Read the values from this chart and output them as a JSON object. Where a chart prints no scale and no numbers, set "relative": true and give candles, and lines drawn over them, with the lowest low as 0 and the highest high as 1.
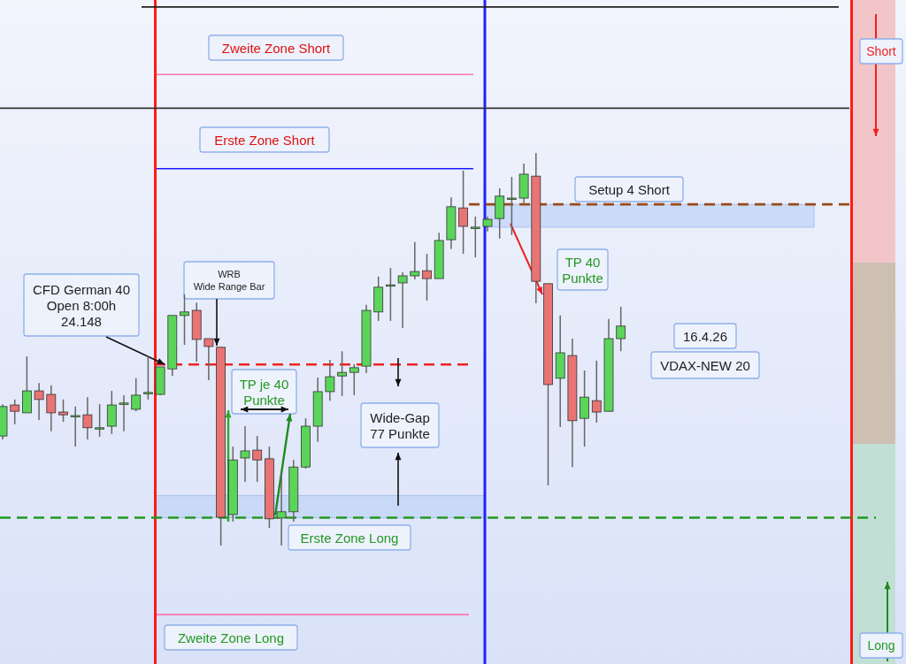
{
  "chart_data": {
    "type": "candlestick",
    "relative": true,
    "categories": [
      null,
      null,
      null,
      null,
      null,
      null,
      null,
      null,
      null,
      null,
      null,
      null,
      null,
      null,
      null,
      null,
      null,
      null,
      null,
      null,
      null,
      null,
      null,
      null,
      null,
      null,
      null,
      null,
      null,
      null,
      null,
      null,
      null,
      null,
      null,
      null,
      null,
      null,
      null,
      null,
      null,
      null,
      null,
      null,
      null,
      null,
      null,
      null,
      null,
      null,
      null,
      null
    ],
    "ohlc": [
      [
        0.279,
        0.36,
        0.27,
        0.354
      ],
      [
        0.358,
        0.372,
        0.309,
        0.342
      ],
      [
        0.338,
        0.482,
        0.338,
        0.394
      ],
      [
        0.394,
        0.414,
        0.32,
        0.372
      ],
      [
        0.385,
        0.408,
        0.291,
        0.338
      ],
      [
        0.34,
        0.372,
        0.315,
        0.333
      ],
      [
        0.331,
        0.354,
        0.252,
        0.331
      ],
      [
        0.333,
        0.378,
        0.27,
        0.3
      ],
      [
        0.3,
        0.36,
        0.277,
        0.3
      ],
      [
        0.304,
        0.394,
        0.284,
        0.358
      ],
      [
        0.36,
        0.383,
        0.291,
        0.363
      ],
      [
        0.347,
        0.426,
        0.342,
        0.383
      ],
      [
        0.388,
        0.482,
        0.372,
        0.39
      ],
      [
        0.385,
        0.455,
        0.383,
        0.455
      ],
      [
        0.45,
        0.586,
        0.432,
        0.586
      ],
      [
        0.586,
        0.64,
        0.511,
        0.595
      ],
      [
        0.599,
        0.619,
        0.468,
        0.525
      ],
      [
        0.527,
        0.527,
        0.421,
        0.507
      ],
      [
        0.505,
        0.505,
        0,
        0.072
      ],
      [
        0.079,
        0.252,
        0.061,
        0.218
      ],
      [
        0.223,
        0.304,
        0.162,
        0.241
      ],
      [
        0.243,
        0.279,
        0.162,
        0.218
      ],
      [
        0.221,
        0.252,
        0.045,
        0.068
      ],
      [
        0.07,
        0.185,
        0,
        0.086
      ],
      [
        0.086,
        0.218,
        0.061,
        0.2
      ],
      [
        0.2,
        0.324,
        0.196,
        0.304
      ],
      [
        0.304,
        0.428,
        0.264,
        0.392
      ],
      [
        0.392,
        0.473,
        0.369,
        0.43
      ],
      [
        0.432,
        0.495,
        0.381,
        0.441
      ],
      [
        0.441,
        0.462,
        0.383,
        0.453
      ],
      [
        0.457,
        0.613,
        0.439,
        0.599
      ],
      [
        0.595,
        0.685,
        0.572,
        0.658
      ],
      [
        0.662,
        0.707,
        0.572,
        0.664
      ],
      [
        0.669,
        0.696,
        0.554,
        0.687
      ],
      [
        0.687,
        0.773,
        0.678,
        0.698
      ],
      [
        0.7,
        0.743,
        0.624,
        0.68
      ],
      [
        0.68,
        0.797,
        0.68,
        0.777
      ],
      [
        0.779,
        0.887,
        0.755,
        0.863
      ],
      [
        0.86,
        0.955,
        0.743,
        0.813
      ],
      [
        0.811,
        0.838,
        0.734,
        0.811
      ],
      [
        0.813,
        0.838,
        0.8,
        0.831
      ],
      [
        0.833,
        0.91,
        0.782,
        0.89
      ],
      [
        0.883,
        0.939,
        0.791,
        0.885
      ],
      [
        0.885,
        0.973,
        0.872,
        0.946
      ],
      [
        0.941,
        1,
        0.617,
        0.673
      ],
      [
        0.667,
        0.667,
        0.153,
        0.41
      ],
      [
        0.426,
        0.586,
        0.302,
        0.491
      ],
      [
        0.484,
        0.527,
        0.2,
        0.318
      ],
      [
        0.324,
        0.446,
        0.252,
        0.378
      ],
      [
        0.369,
        0.471,
        0.313,
        0.34
      ],
      [
        0.342,
        0.577,
        0.342,
        0.527
      ],
      [
        0.527,
        0.608,
        0.495,
        0.559
      ]
    ],
    "ref_lines": [
      {
        "axis": "y",
        "value": 1.372,
        "color": "#222222"
      },
      {
        "axis": "y",
        "value": 1.2,
        "label": "Zweite Zone Short",
        "color": "#ff77aa"
      },
      {
        "axis": "y",
        "value": 1.114,
        "color": "#333333"
      },
      {
        "axis": "y",
        "value": 0.96,
        "label": "Erste Zone Short",
        "color": "#1a1aff"
      },
      {
        "axis": "y",
        "value": 0.869,
        "label": "Setup 4 Short",
        "color": "#9a4a1a",
        "line_style": "dashed"
      },
      {
        "axis": "y",
        "value": 0.461,
        "color": "#ee2222",
        "line_style": "dashed"
      },
      {
        "axis": "y",
        "value": 0.071,
        "label": "Erste Zone Long",
        "color": "#229922",
        "line_style": "dashed"
      },
      {
        "axis": "y",
        "value": -0.176,
        "label": "Zweite Zone Long",
        "color": "#ff77aa"
      }
    ],
    "bands": [
      {
        "axis": "y",
        "from": 0.811,
        "to": 0.869,
        "color": "#c6d8f8"
      },
      {
        "axis": "y",
        "from": 0.071,
        "to": 0.127,
        "color": "#c6d8f8"
      }
    ],
    "annotations": [
      "CFD German 40\nOpen 8:00h\n24.148",
      "WRB\nWide Range Bar",
      "TP je 40\nPunkte",
      "Wide-Gap\n77 Punkte",
      "TP 40\nPunkte",
      "16.4.26",
      "VDAX-NEW 20",
      "Short",
      "Long"
    ]
  }
}
